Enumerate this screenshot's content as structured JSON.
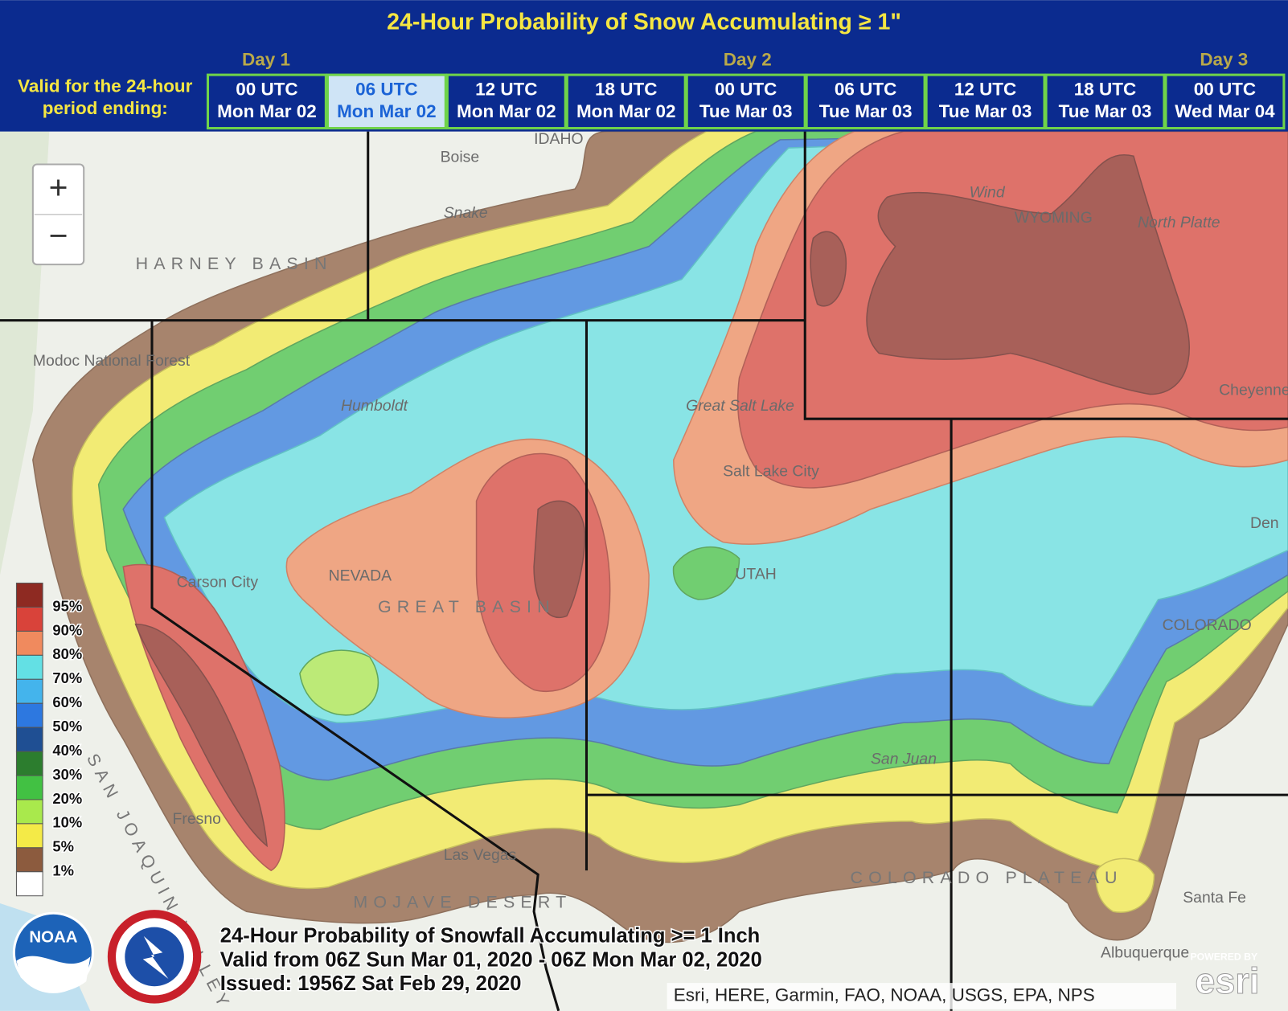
{
  "header": {
    "title": "24-Hour Probability of Snow Accumulating ≥ 1\"",
    "valid_label": [
      "Valid for the 24-hour",
      "period ending:"
    ],
    "days": [
      "Day 1",
      "Day 2",
      "Day 3"
    ],
    "tabs": [
      {
        "time": "00 UTC",
        "date": "Mon Mar 02"
      },
      {
        "time": "06 UTC",
        "date": "Mon Mar 02"
      },
      {
        "time": "12 UTC",
        "date": "Mon Mar 02"
      },
      {
        "time": "18 UTC",
        "date": "Mon Mar 02"
      },
      {
        "time": "00 UTC",
        "date": "Tue Mar 03"
      },
      {
        "time": "06 UTC",
        "date": "Tue Mar 03"
      },
      {
        "time": "12 UTC",
        "date": "Tue Mar 03"
      },
      {
        "time": "18 UTC",
        "date": "Tue Mar 03"
      },
      {
        "time": "00 UTC",
        "date": "Wed Mar 04"
      }
    ],
    "selected_tab": 1
  },
  "zoom": {
    "in": "+",
    "out": "−"
  },
  "legend": {
    "labels": [
      "95%",
      "90%",
      "80%",
      "70%",
      "60%",
      "50%",
      "40%",
      "30%",
      "20%",
      "10%",
      "5%",
      "1%"
    ],
    "colors": [
      "#8e2a22",
      "#d9433a",
      "#f08a5e",
      "#63e0e4",
      "#44b4ec",
      "#2d78e0",
      "#1f4f93",
      "#2c7d2e",
      "#42c143",
      "#a9e94c",
      "#f4ea47",
      "#8c5b3e",
      "#ffffff"
    ]
  },
  "map_labels": [
    "Boise",
    "IDAHO",
    "Snake",
    "HARNEY BASIN",
    "Modoc National Forest",
    "Humboldt",
    "Great Salt Lake",
    "Salt Lake City",
    "NEVADA",
    "GREAT BASIN",
    "Carson City",
    "UTAH",
    "WYOMING",
    "Wind",
    "North Platte",
    "Cheyenne",
    "Den",
    "COLORADO",
    "San Juan",
    "Fresno",
    "SAN JOAQUIN VALLEY",
    "Las Vegas",
    "MOJAVE DESERT",
    "COLORADO PLATEAU",
    "Santa Fe",
    "Albuquerque"
  ],
  "caption": [
    "24-Hour Probability of Snowfall Accumulating >= 1 Inch",
    "Valid from 06Z Sun Mar 01, 2020 - 06Z Mon Mar 02, 2020",
    "Issued: 1956Z Sat Feb 29, 2020"
  ],
  "attribution": "Esri, HERE, Garmin, FAO, NOAA, USGS, EPA, NPS",
  "logos": {
    "noaa": "NOAA",
    "esri_powered": "POWERED BY",
    "esri": "esri"
  }
}
